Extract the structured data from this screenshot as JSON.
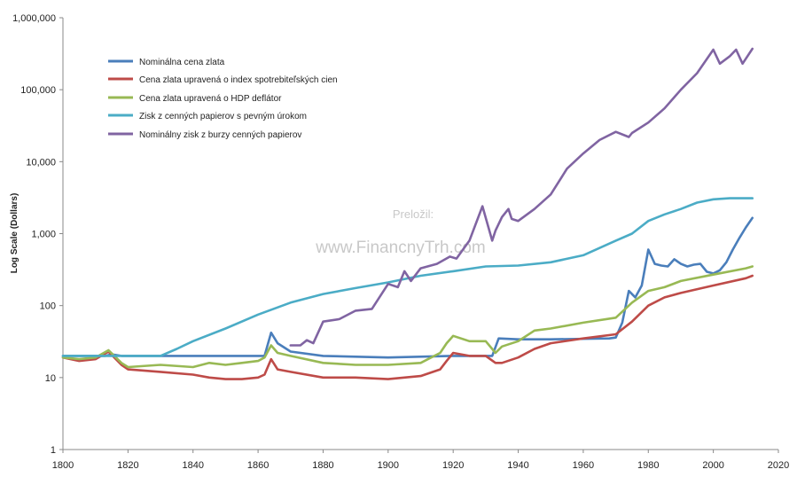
{
  "chart_data": {
    "type": "line",
    "title": "",
    "xlabel": "",
    "ylabel": "Log Scale (Dollars)",
    "y_scale": "log",
    "xlim": [
      1800,
      2020
    ],
    "ylim": [
      1,
      1000000
    ],
    "x_ticks": [
      1800,
      1820,
      1840,
      1860,
      1880,
      1900,
      1920,
      1940,
      1960,
      1980,
      2000,
      2020
    ],
    "y_ticks": [
      1,
      10,
      100,
      1000,
      10000,
      100000,
      1000000
    ],
    "y_tick_labels": [
      "1",
      "10",
      "100",
      "1,000",
      "10,000",
      "100,000",
      "1,000,000"
    ],
    "grid": false,
    "legend_position": "top-left",
    "watermark": {
      "line1": "Preložil:",
      "line2": "www.FinancnyTrh.com"
    },
    "series": [
      {
        "name": "Nominálna cena zlata",
        "color": "#4a7ebb",
        "x": [
          1800,
          1813,
          1815,
          1818,
          1830,
          1862,
          1864,
          1866,
          1870,
          1880,
          1900,
          1920,
          1932,
          1934,
          1940,
          1950,
          1968,
          1970,
          1972,
          1974,
          1976,
          1978,
          1980,
          1982,
          1984,
          1986,
          1988,
          1990,
          1992,
          1994,
          1996,
          1998,
          2000,
          2002,
          2004,
          2006,
          2008,
          2010,
          2012
        ],
        "y": [
          20,
          20,
          21,
          20,
          20,
          20,
          42,
          30,
          23,
          20,
          19,
          20,
          20,
          35,
          34,
          34,
          35,
          36,
          58,
          160,
          130,
          190,
          600,
          380,
          360,
          350,
          440,
          380,
          350,
          370,
          380,
          295,
          280,
          310,
          400,
          600,
          870,
          1220,
          1650
        ]
      },
      {
        "name": "Cena zlata upravená o index spotrebiteľských cien",
        "color": "#be4b48",
        "x": [
          1800,
          1805,
          1810,
          1814,
          1818,
          1820,
          1830,
          1840,
          1845,
          1850,
          1855,
          1860,
          1862,
          1864,
          1866,
          1870,
          1880,
          1890,
          1900,
          1910,
          1916,
          1918,
          1920,
          1925,
          1930,
          1933,
          1935,
          1940,
          1945,
          1950,
          1960,
          1970,
          1975,
          1980,
          1985,
          1990,
          2000,
          2010,
          2012
        ],
        "y": [
          19,
          17,
          18,
          23,
          15,
          13,
          12,
          11,
          10,
          9.5,
          9.5,
          10,
          11,
          18,
          13,
          12,
          10,
          10,
          9.5,
          10.5,
          13,
          17,
          22,
          20,
          20,
          16,
          16,
          19,
          25,
          30,
          35,
          40,
          60,
          100,
          130,
          150,
          190,
          240,
          260
        ]
      },
      {
        "name": "Cena zlata upravená o HDP deflátor",
        "color": "#98b954",
        "x": [
          1800,
          1805,
          1810,
          1814,
          1818,
          1820,
          1830,
          1840,
          1845,
          1850,
          1855,
          1860,
          1862,
          1864,
          1866,
          1870,
          1880,
          1890,
          1900,
          1910,
          1916,
          1918,
          1920,
          1925,
          1930,
          1933,
          1935,
          1940,
          1945,
          1950,
          1960,
          1970,
          1975,
          1980,
          1985,
          1990,
          2000,
          2010,
          2012
        ],
        "y": [
          19,
          18,
          19,
          24,
          16,
          14,
          15,
          14,
          16,
          15,
          16,
          17,
          19,
          28,
          22,
          20,
          16,
          15,
          15,
          16,
          22,
          30,
          38,
          32,
          32,
          22,
          27,
          32,
          45,
          48,
          58,
          68,
          110,
          160,
          180,
          220,
          270,
          330,
          350
        ]
      },
      {
        "name": "Zisk z cenných papierov s pevným úrokom",
        "color": "#4bacc6",
        "x": [
          1800,
          1810,
          1820,
          1830,
          1835,
          1840,
          1850,
          1860,
          1870,
          1880,
          1890,
          1900,
          1910,
          1920,
          1930,
          1940,
          1950,
          1960,
          1970,
          1975,
          1980,
          1985,
          1990,
          1995,
          2000,
          2005,
          2010,
          2012
        ],
        "y": [
          20,
          20,
          20,
          20,
          25,
          32,
          48,
          75,
          110,
          145,
          175,
          210,
          260,
          300,
          350,
          360,
          400,
          500,
          800,
          1000,
          1500,
          1850,
          2200,
          2700,
          3000,
          3100,
          3100,
          3100
        ]
      },
      {
        "name": "Nominálny zisk z burzy cenných papierov",
        "color": "#8064a2",
        "x": [
          1870,
          1873,
          1875,
          1877,
          1880,
          1885,
          1890,
          1895,
          1900,
          1903,
          1905,
          1907,
          1910,
          1915,
          1919,
          1921,
          1925,
          1929,
          1932,
          1933,
          1935,
          1937,
          1938,
          1940,
          1945,
          1950,
          1955,
          1960,
          1965,
          1970,
          1974,
          1975,
          1980,
          1985,
          1990,
          1995,
          2000,
          2002,
          2005,
          2007,
          2009,
          2012
        ],
        "y": [
          28,
          28,
          33,
          30,
          60,
          65,
          85,
          90,
          200,
          180,
          300,
          220,
          330,
          380,
          480,
          450,
          800,
          2400,
          800,
          1100,
          1700,
          2200,
          1600,
          1500,
          2200,
          3500,
          8000,
          13000,
          20000,
          26000,
          22000,
          25000,
          35000,
          55000,
          100000,
          170000,
          360000,
          230000,
          290000,
          360000,
          230000,
          370000
        ]
      }
    ]
  }
}
